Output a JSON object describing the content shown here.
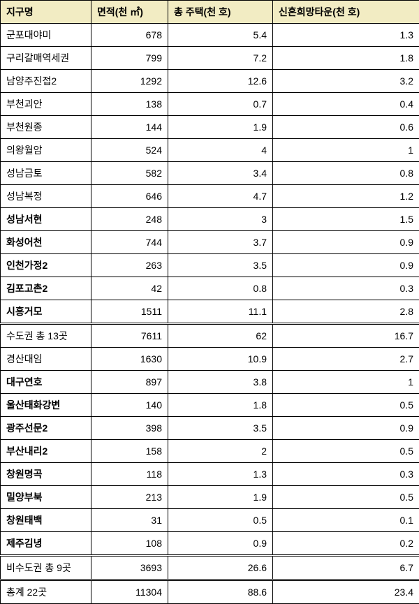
{
  "headers": {
    "district": "지구명",
    "area": "면적(천 ㎡)",
    "totalHousing": "총 주택(천 호)",
    "newlywedTown": "신혼희망타운(천 호)"
  },
  "rows": [
    {
      "name": "군포대야미",
      "area": "678",
      "housing": "5.4",
      "newlywed": "1.3",
      "bold": false
    },
    {
      "name": "구리갈매역세권",
      "area": "799",
      "housing": "7.2",
      "newlywed": "1.8",
      "bold": false
    },
    {
      "name": "남양주진접2",
      "area": "1292",
      "housing": "12.6",
      "newlywed": "3.2",
      "bold": false
    },
    {
      "name": "부천괴안",
      "area": "138",
      "housing": "0.7",
      "newlywed": "0.4",
      "bold": false
    },
    {
      "name": "부천원종",
      "area": "144",
      "housing": "1.9",
      "newlywed": "0.6",
      "bold": false
    },
    {
      "name": "의왕월암",
      "area": "524",
      "housing": "4",
      "newlywed": "1",
      "bold": false
    },
    {
      "name": "성남금토",
      "area": "582",
      "housing": "3.4",
      "newlywed": "0.8",
      "bold": false
    },
    {
      "name": "성남복정",
      "area": "646",
      "housing": "4.7",
      "newlywed": "1.2",
      "bold": false
    },
    {
      "name": "성남서현",
      "area": "248",
      "housing": "3",
      "newlywed": "1.5",
      "bold": true
    },
    {
      "name": "화성어천",
      "area": "744",
      "housing": "3.7",
      "newlywed": "0.9",
      "bold": true
    },
    {
      "name": "인천가정2",
      "area": "263",
      "housing": "3.5",
      "newlywed": "0.9",
      "bold": true
    },
    {
      "name": "김포고촌2",
      "area": "42",
      "housing": "0.8",
      "newlywed": "0.3",
      "bold": true
    },
    {
      "name": "시흥거모",
      "area": "1511",
      "housing": "11.1",
      "newlywed": "2.8",
      "bold": true
    }
  ],
  "subtotal1": {
    "name": "수도권 총 13곳",
    "area": "7611",
    "housing": "62",
    "newlywed": "16.7"
  },
  "rows2": [
    {
      "name": "경산대임",
      "area": "1630",
      "housing": "10.9",
      "newlywed": "2.7",
      "bold": false
    },
    {
      "name": "대구연호",
      "area": "897",
      "housing": "3.8",
      "newlywed": "1",
      "bold": true
    },
    {
      "name": "울산태화강변",
      "area": "140",
      "housing": "1.8",
      "newlywed": "0.5",
      "bold": true
    },
    {
      "name": "광주선문2",
      "area": "398",
      "housing": "3.5",
      "newlywed": "0.9",
      "bold": true
    },
    {
      "name": "부산내리2",
      "area": "158",
      "housing": "2",
      "newlywed": "0.5",
      "bold": true
    },
    {
      "name": "창원명곡",
      "area": "118",
      "housing": "1.3",
      "newlywed": "0.3",
      "bold": true
    },
    {
      "name": "밀양부북",
      "area": "213",
      "housing": "1.9",
      "newlywed": "0.5",
      "bold": true
    },
    {
      "name": "창원태백",
      "area": "31",
      "housing": "0.5",
      "newlywed": "0.1",
      "bold": true
    },
    {
      "name": "제주김녕",
      "area": "108",
      "housing": "0.9",
      "newlywed": "0.2",
      "bold": true
    }
  ],
  "subtotal2": {
    "name": "비수도권 총 9곳",
    "area": "3693",
    "housing": "26.6",
    "newlywed": "6.7"
  },
  "total": {
    "name": "총계 22곳",
    "area": "11304",
    "housing": "88.6",
    "newlywed": "23.4"
  }
}
